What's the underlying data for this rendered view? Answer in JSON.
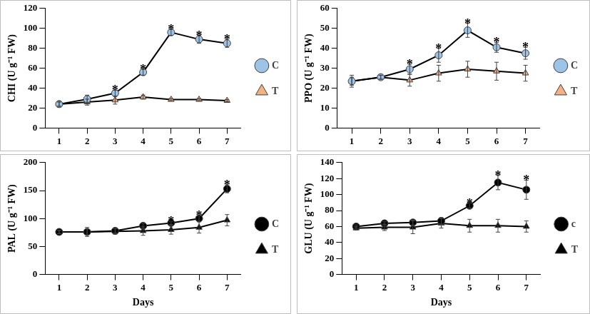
{
  "chart_data": [
    {
      "type": "line",
      "y_label": "CHI (U g⁻¹ FW)",
      "categories": [
        1,
        2,
        3,
        4,
        5,
        6,
        7
      ],
      "series": [
        {
          "name": "C",
          "color": "#9dc3e6",
          "marker": "circle",
          "values": [
            24,
            29,
            35,
            56,
            96,
            89,
            85
          ],
          "errors": [
            3,
            4,
            3,
            3,
            3,
            4,
            4
          ]
        },
        {
          "name": "T",
          "color": "#f4b183",
          "marker": "triangle",
          "values": [
            24,
            26,
            28,
            31,
            28.5,
            28.5,
            27.5
          ],
          "errors": [
            2,
            3,
            4,
            2,
            1,
            1,
            1
          ]
        }
      ],
      "significance": [
        null,
        null,
        "*",
        "*",
        "*",
        "*",
        "*"
      ],
      "ylim": [
        0,
        120
      ],
      "yticks": [
        0,
        20,
        40,
        60,
        80,
        100,
        120
      ],
      "grid": false,
      "legend": "right"
    },
    {
      "type": "line",
      "y_label": "PPO (U g⁻¹ FW)",
      "categories": [
        1,
        2,
        3,
        4,
        5,
        6,
        7
      ],
      "series": [
        {
          "name": "C",
          "color": "#9dc3e6",
          "marker": "circle",
          "values": [
            23.5,
            25.5,
            29.5,
            36.5,
            49,
            40.5,
            37.5
          ],
          "errors": [
            3,
            1,
            2.5,
            3.5,
            3.5,
            2.5,
            3
          ]
        },
        {
          "name": "T",
          "color": "#f4b183",
          "marker": "triangle",
          "values": [
            23.5,
            25.5,
            24,
            27.5,
            29.5,
            28.5,
            27.5
          ],
          "errors": [
            2,
            1,
            3,
            4,
            4,
            4.5,
            4
          ]
        }
      ],
      "significance": [
        null,
        null,
        "*",
        "*",
        "*",
        "*",
        "*"
      ],
      "ylim": [
        0,
        60
      ],
      "yticks": [
        0,
        10,
        20,
        30,
        40,
        50,
        60
      ],
      "grid": false,
      "legend": "right"
    },
    {
      "type": "line",
      "y_label": "PAL (U g⁻¹ FW)",
      "x_label": "Days",
      "categories": [
        1,
        2,
        3,
        4,
        5,
        6,
        7
      ],
      "series": [
        {
          "name": "C",
          "color": "#000000",
          "marker": "circle",
          "values": [
            76,
            76,
            78,
            87,
            92,
            100,
            153
          ],
          "errors": [
            3,
            5,
            4,
            4,
            3,
            5,
            7
          ]
        },
        {
          "name": "T",
          "color": "#000000",
          "marker": "triangle",
          "values": [
            76,
            76,
            77,
            78,
            80,
            84,
            97
          ],
          "errors": [
            3,
            8,
            5,
            8,
            8,
            10,
            10
          ]
        }
      ],
      "significance": [
        null,
        null,
        null,
        null,
        "*",
        "*",
        "*"
      ],
      "ylim": [
        0,
        200
      ],
      "yticks": [
        0,
        50,
        100,
        150,
        200
      ],
      "grid": false,
      "legend": "right"
    },
    {
      "type": "line",
      "y_label": "GLU (U g⁻¹ FW)",
      "x_label": "Days",
      "categories": [
        1,
        2,
        3,
        4,
        5,
        6,
        7
      ],
      "series": [
        {
          "name": "c",
          "color": "#000000",
          "marker": "circle",
          "values": [
            60,
            64,
            65,
            67,
            86,
            115,
            106
          ],
          "errors": [
            2,
            2,
            3,
            4,
            3,
            9,
            12
          ]
        },
        {
          "name": "T",
          "color": "#000000",
          "marker": "triangle",
          "values": [
            58,
            59,
            59,
            64,
            61,
            61,
            60
          ],
          "errors": [
            2,
            4,
            8,
            6,
            8,
            8,
            7
          ]
        }
      ],
      "significance": [
        null,
        null,
        null,
        null,
        "*",
        "*",
        "*"
      ],
      "ylim": [
        0,
        140
      ],
      "yticks": [
        0,
        20,
        40,
        60,
        80,
        100,
        120,
        140
      ],
      "grid": false,
      "legend": "right"
    }
  ]
}
